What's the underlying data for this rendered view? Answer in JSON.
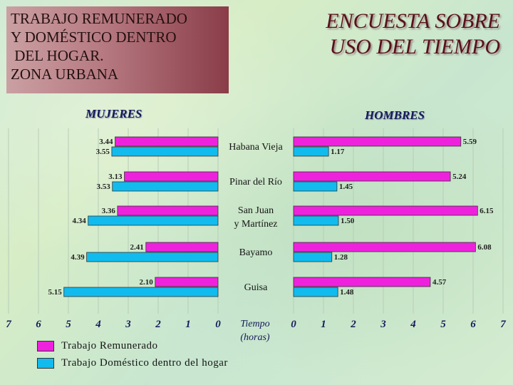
{
  "title_box": {
    "lines": [
      "TRABAJO REMUNERADO",
      "Y DOMÉSTICO DENTRO",
      " DEL HOGAR.",
      "ZONA URBANA"
    ]
  },
  "header": {
    "lines": [
      "ENCUESTA SOBRE",
      "USO DEL TIEMPO"
    ]
  },
  "colors": {
    "remunerado": "#ee22dd",
    "domestico": "#11bbee"
  },
  "chart_data": {
    "type": "bar",
    "orientation": "horizontal",
    "layout": "back-to-back",
    "panels": [
      "MUJERES",
      "HOMBRES"
    ],
    "categories": [
      "Habana Vieja",
      "Pinar del Río",
      "San Juan\ny Martínez",
      "Bayamo",
      "Guisa"
    ],
    "series": [
      {
        "name": "Trabajo Remunerado",
        "mujeres": [
          3.44,
          3.13,
          3.36,
          2.41,
          2.1
        ],
        "hombres": [
          5.59,
          5.24,
          6.15,
          6.08,
          4.57
        ]
      },
      {
        "name": "Trabajo Doméstico dentro del hogar",
        "mujeres": [
          3.55,
          3.53,
          4.34,
          4.39,
          5.15
        ],
        "hombres": [
          1.17,
          1.45,
          1.5,
          1.28,
          1.48
        ]
      }
    ],
    "mujeres_labels": [
      [
        "3.44",
        "3.55"
      ],
      [
        "3.13",
        "3.53"
      ],
      [
        "3.36",
        "4.34"
      ],
      [
        "2.41",
        "4.39"
      ],
      [
        "2.10",
        "5.15"
      ]
    ],
    "hombres_labels": [
      [
        "5.59",
        "1.17"
      ],
      [
        "5.24",
        "1.45"
      ],
      [
        "6.15",
        "1.50"
      ],
      [
        "6.08",
        "1.28"
      ],
      [
        "4.57",
        "1.48"
      ]
    ],
    "xlim": [
      0,
      7
    ],
    "mujeres_ticks": [
      "7",
      "6",
      "5",
      "4",
      "3",
      "2",
      "1",
      "0"
    ],
    "hombres_ticks": [
      "0",
      "1",
      "2",
      "3",
      "4",
      "5",
      "6",
      "7"
    ],
    "unit_label": [
      "Tiempo",
      "(horas)"
    ],
    "legend": [
      "Trabajo Remunerado",
      "Trabajo Doméstico dentro del hogar"
    ]
  }
}
